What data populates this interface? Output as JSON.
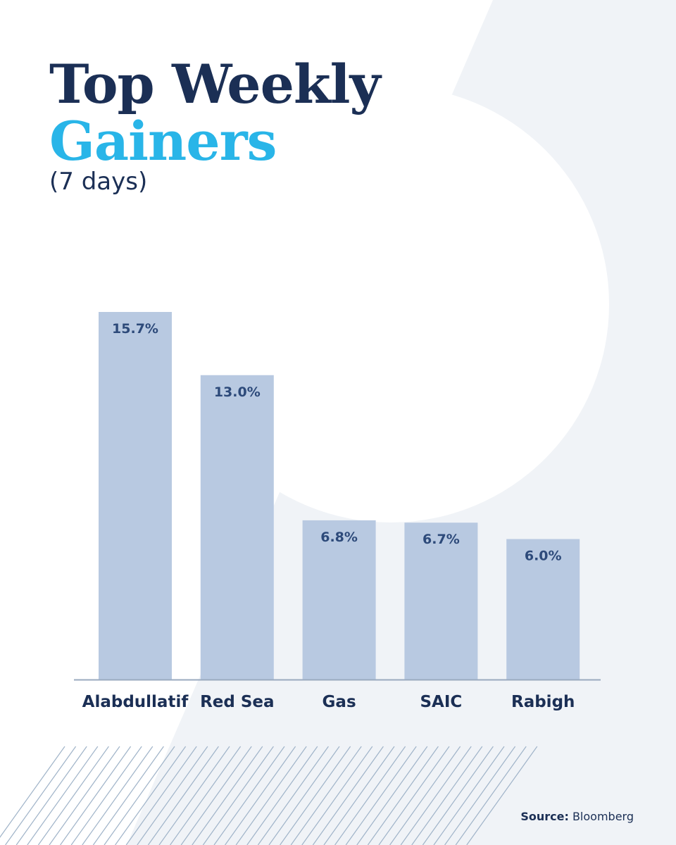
{
  "colors": {
    "navy": "#1b2f55",
    "cyan": "#29b5e8",
    "bar": "#b8c9e1",
    "bar_label": "#2d4a7a",
    "axis": "#9aaabf",
    "panel": "#f0f3f7",
    "hatch": "#9fb3c8"
  },
  "header": {
    "title_line1": "Top Weekly",
    "title_line2": "Gainers",
    "subtitle": "(7 days)"
  },
  "source": {
    "label": "Source:",
    "name": "Bloomberg"
  },
  "chart_data": {
    "type": "bar",
    "title": "Top Weekly Gainers",
    "subtitle": "(7 days)",
    "categories": [
      "Alabdullatif",
      "Red Sea",
      "Gas",
      "SAIC",
      "Rabigh"
    ],
    "values": [
      15.7,
      13.0,
      6.8,
      6.7,
      6.0
    ],
    "value_labels": [
      "15.7%",
      "13.0%",
      "6.8%",
      "6.7%",
      "6.0%"
    ],
    "unit": "%",
    "ylim": [
      0,
      15.7
    ],
    "grid": false,
    "legend": "none"
  }
}
